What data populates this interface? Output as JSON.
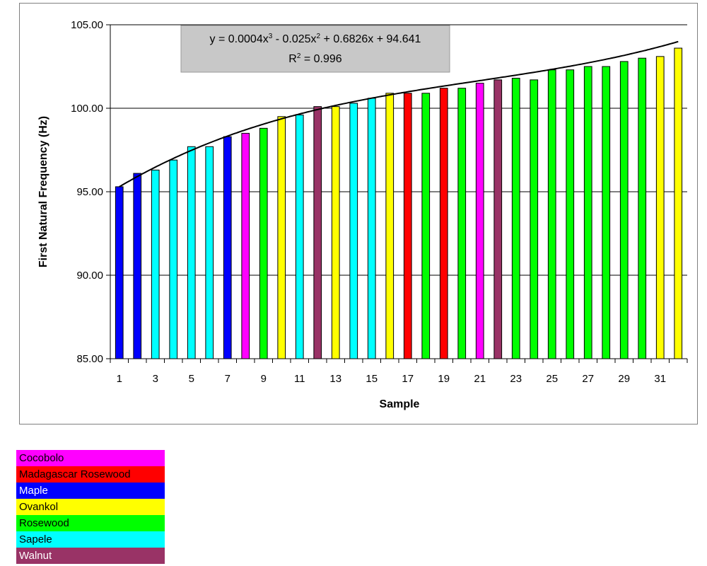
{
  "chart_data": {
    "type": "bar",
    "title": "",
    "xlabel": "Sample",
    "ylabel": "First Natural Frequency (Hz)",
    "ylim": [
      85,
      105
    ],
    "yticks": [
      "85.00",
      "90.00",
      "95.00",
      "100.00",
      "105.00"
    ],
    "xtick_labels": [
      "1",
      "3",
      "5",
      "7",
      "9",
      "11",
      "13",
      "15",
      "17",
      "19",
      "21",
      "23",
      "25",
      "27",
      "29",
      "31"
    ],
    "grid": "horizontal",
    "categories": [
      1,
      2,
      3,
      4,
      5,
      6,
      7,
      8,
      9,
      10,
      11,
      12,
      13,
      14,
      15,
      16,
      17,
      18,
      19,
      20,
      21,
      22,
      23,
      24,
      25,
      26,
      27,
      28,
      29,
      30,
      31,
      32
    ],
    "values": [
      95.3,
      96.1,
      96.3,
      96.9,
      97.7,
      97.7,
      98.3,
      98.5,
      98.8,
      99.5,
      99.6,
      100.1,
      100.1,
      100.3,
      100.6,
      100.9,
      100.9,
      100.9,
      101.2,
      101.2,
      101.5,
      101.7,
      101.8,
      101.7,
      102.3,
      102.3,
      102.5,
      102.5,
      102.8,
      103.0,
      103.1,
      103.6
    ],
    "species": [
      "Maple",
      "Maple",
      "Sapele",
      "Sapele",
      "Sapele",
      "Sapele",
      "Maple",
      "Cocobolo",
      "Rosewood",
      "Ovankol",
      "Sapele",
      "Walnut",
      "Ovankol",
      "Sapele",
      "Sapele",
      "Ovankol",
      "Madagascar Rosewood",
      "Rosewood",
      "Madagascar Rosewood",
      "Rosewood",
      "Cocobolo",
      "Walnut",
      "Rosewood",
      "Rosewood",
      "Rosewood",
      "Rosewood",
      "Rosewood",
      "Rosewood",
      "Rosewood",
      "Rosewood",
      "Ovankol",
      "Ovankol"
    ],
    "trendline": {
      "type": "polynomial",
      "coefficients": [
        0.0004,
        -0.025,
        0.6826,
        94.641
      ]
    },
    "annotation": {
      "eq_prefix": "y = 0.0004x",
      "eq_p1": "3",
      "eq_mid": " - 0.025x",
      "eq_p2": "2",
      "eq_suffix": " + 0.6826x + 94.641",
      "r2_prefix": "R",
      "r2_exp": "2",
      "r2_suffix": " = 0.996"
    },
    "legend": [
      {
        "name": "Cocobolo",
        "color": "#ff00ff"
      },
      {
        "name": "Madagascar Rosewood",
        "color": "#ff0000"
      },
      {
        "name": "Maple",
        "color": "#0000ff"
      },
      {
        "name": "Ovankol",
        "color": "#ffff00"
      },
      {
        "name": "Rosewood",
        "color": "#00ff00"
      },
      {
        "name": "Sapele",
        "color": "#00ffff"
      },
      {
        "name": "Walnut",
        "color": "#993366"
      }
    ],
    "legend_placement": "bottom-left"
  }
}
